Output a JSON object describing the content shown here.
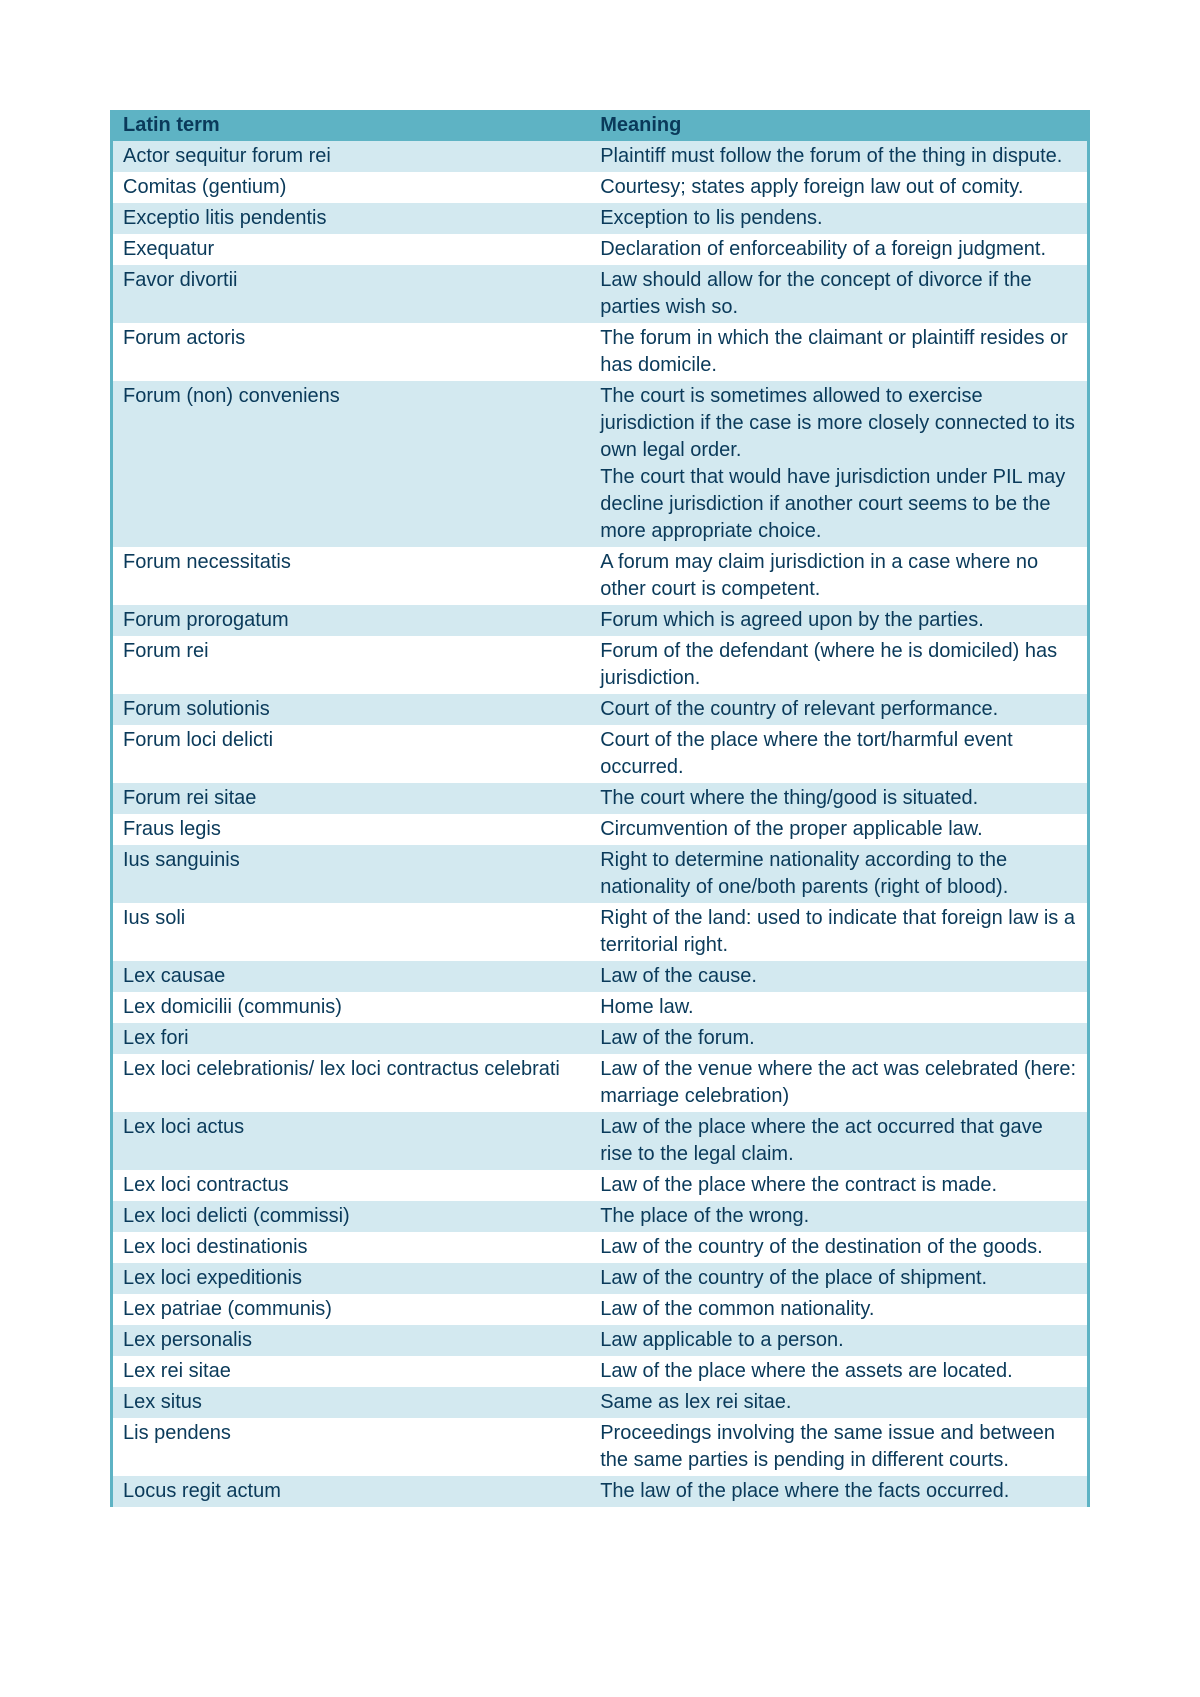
{
  "table": {
    "header_bg": "#5eb3c4",
    "header_color": "#0a3a5a",
    "row_odd_bg": "#d3e9f0",
    "row_even_bg": "#ffffff",
    "text_color": "#0a3a5a",
    "border_color": "#5eb3c4",
    "font_size": "20px",
    "columns": [
      "Latin term",
      "Meaning"
    ],
    "rows": [
      [
        "Actor sequitur forum rei",
        "Plaintiff must follow the forum of the thing in dispute."
      ],
      [
        "Comitas (gentium)",
        "Courtesy; states apply foreign law out of comity."
      ],
      [
        "Exceptio litis pendentis",
        "Exception to lis pendens."
      ],
      [
        "Exequatur",
        "Declaration of enforceability of a foreign judgment."
      ],
      [
        "Favor divortii",
        "Law should allow for the concept of divorce if the parties wish so."
      ],
      [
        "Forum actoris",
        "The forum in which the claimant or plaintiff resides or has domicile."
      ],
      [
        "Forum (non) conveniens",
        "The court is sometimes allowed to exercise jurisdiction if the case is more closely connected to its own legal order.\nThe court that would have jurisdiction under PIL may decline jurisdiction if another court seems to be the more appropriate choice."
      ],
      [
        "Forum necessitatis",
        "A forum may claim jurisdiction in a case where no other court is competent."
      ],
      [
        "Forum prorogatum",
        "Forum which is agreed upon by the parties."
      ],
      [
        "Forum rei",
        "Forum of the defendant (where he is domiciled) has jurisdiction."
      ],
      [
        "Forum solutionis",
        "Court of the country of relevant performance."
      ],
      [
        "Forum loci delicti",
        "Court of the place where the tort/harmful event occurred."
      ],
      [
        "Forum rei sitae",
        "The court where the thing/good is situated."
      ],
      [
        "Fraus legis",
        "Circumvention of the proper applicable law."
      ],
      [
        "Ius sanguinis",
        "Right to determine nationality according to the nationality of one/both parents (right of blood)."
      ],
      [
        "Ius soli",
        "Right of the land: used to indicate that foreign law is a territorial right."
      ],
      [
        "Lex causae",
        "Law of the cause."
      ],
      [
        "Lex domicilii (communis)",
        "Home law."
      ],
      [
        "Lex fori",
        "Law of the forum."
      ],
      [
        "Lex loci celebrationis/ lex loci contractus celebrati",
        "Law of the venue where the act was celebrated (here: marriage celebration)"
      ],
      [
        "Lex loci actus",
        "Law of the place where the act occurred that gave rise to the legal claim."
      ],
      [
        "Lex loci contractus",
        "Law of the place where the contract is made."
      ],
      [
        "Lex loci delicti (commissi)",
        "The place of the wrong."
      ],
      [
        "Lex loci destinationis",
        "Law of the country of the destination of the goods."
      ],
      [
        "Lex loci expeditionis",
        "Law of the country of the place of shipment."
      ],
      [
        "Lex patriae (communis)",
        "Law of the common nationality."
      ],
      [
        "Lex personalis",
        "Law applicable to a person."
      ],
      [
        "Lex rei sitae",
        "Law of the place where the assets are located."
      ],
      [
        "Lex situs",
        "Same as lex rei sitae."
      ],
      [
        "Lis pendens",
        "Proceedings involving the same issue and between the same parties is pending in different courts."
      ],
      [
        "Locus regit actum",
        "The law of the place where the facts occurred."
      ]
    ]
  }
}
